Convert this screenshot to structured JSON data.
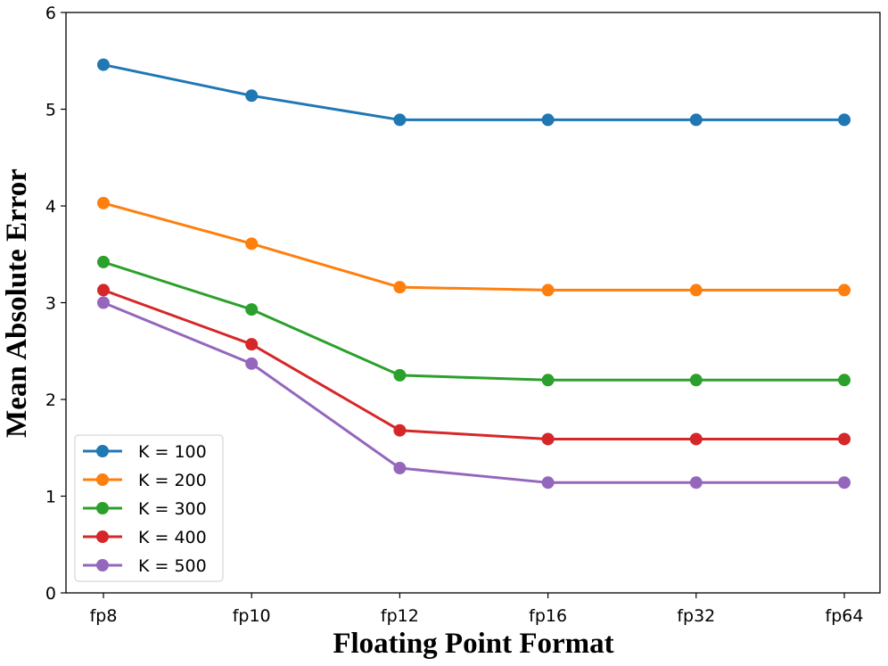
{
  "chart_data": {
    "type": "line",
    "title": "",
    "xlabel": "Floating Point Format",
    "ylabel": "Mean Absolute Error",
    "categories": [
      "fp8",
      "fp10",
      "fp12",
      "fp16",
      "fp32",
      "fp64"
    ],
    "ylim": [
      0,
      6
    ],
    "yticks": [
      0,
      1,
      2,
      3,
      4,
      5,
      6
    ],
    "grid": false,
    "legend_position": "lower-left",
    "series": [
      {
        "name": "K = 100",
        "color": "#1f77b4",
        "values": [
          5.46,
          5.14,
          4.89,
          4.89,
          4.89,
          4.89
        ]
      },
      {
        "name": "K = 200",
        "color": "#ff7f0e",
        "values": [
          4.03,
          3.61,
          3.16,
          3.13,
          3.13,
          3.13
        ]
      },
      {
        "name": "K = 300",
        "color": "#2ca02c",
        "values": [
          3.42,
          2.93,
          2.25,
          2.2,
          2.2,
          2.2
        ]
      },
      {
        "name": "K = 400",
        "color": "#d62728",
        "values": [
          3.13,
          2.57,
          1.68,
          1.59,
          1.59,
          1.59
        ]
      },
      {
        "name": "K = 500",
        "color": "#9467bd",
        "values": [
          3.0,
          2.37,
          1.29,
          1.14,
          1.14,
          1.14
        ]
      }
    ]
  }
}
